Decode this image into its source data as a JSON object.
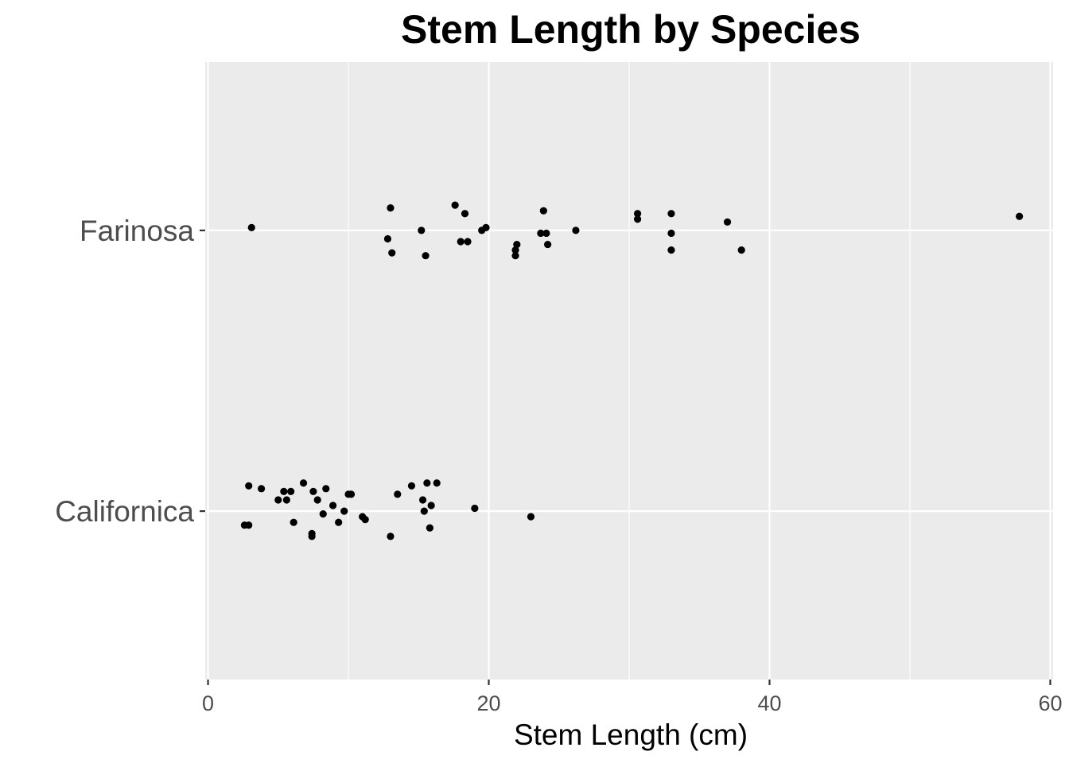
{
  "chart_data": {
    "type": "scatter",
    "title": "Stem Length by Species",
    "xlabel": "Stem Length (cm)",
    "ylabel": "",
    "xlim": [
      -0.2,
      60.2
    ],
    "xticks": [
      0,
      20,
      40,
      60
    ],
    "categories": [
      "Californica",
      "Farinosa"
    ],
    "grid": true,
    "legend": "none",
    "colors": {
      "panel": "#ebebeb",
      "grid": "#ffffff",
      "point": "#000000",
      "tick_text": "#4d4d4d",
      "axis_ticks": "#333333"
    },
    "series": [
      {
        "category": "Farinosa",
        "points": [
          {
            "x": 2.9,
            "y": 1.09
          },
          {
            "x": 3.8,
            "y": 1.08
          },
          {
            "x": 5.4,
            "y": 1.07
          },
          {
            "x": 5.9,
            "y": 1.07
          },
          {
            "x": 6.8,
            "y": 1.1
          },
          {
            "x": 7.5,
            "y": 1.07
          },
          {
            "x": 8.4,
            "y": 1.08
          },
          {
            "x": 10.0,
            "y": 1.06
          },
          {
            "x": 10.2,
            "y": 1.06
          },
          {
            "x": 13.5,
            "y": 1.06
          },
          {
            "x": 14.5,
            "y": 1.09
          },
          {
            "x": 15.6,
            "y": 1.1
          },
          {
            "x": 16.3,
            "y": 1.1
          },
          {
            "x": 5.0,
            "y": 1.04
          },
          {
            "x": 5.6,
            "y": 1.04
          },
          {
            "x": 7.8,
            "y": 1.04
          },
          {
            "x": 8.9,
            "y": 1.02
          },
          {
            "x": 15.3,
            "y": 1.04
          },
          {
            "x": 15.9,
            "y": 1.02
          },
          {
            "x": 19.0,
            "y": 1.01
          },
          {
            "x": 8.2,
            "y": 0.99
          },
          {
            "x": 9.7,
            "y": 1.0
          },
          {
            "x": 11.0,
            "y": 0.98
          },
          {
            "x": 11.2,
            "y": 0.97
          },
          {
            "x": 15.4,
            "y": 1.0
          },
          {
            "x": 23.0,
            "y": 0.98
          },
          {
            "x": 2.6,
            "y": 0.95
          },
          {
            "x": 2.9,
            "y": 0.95
          },
          {
            "x": 6.1,
            "y": 0.96
          },
          {
            "x": 9.3,
            "y": 0.96
          },
          {
            "x": 15.8,
            "y": 0.94
          },
          {
            "x": 7.4,
            "y": 0.92
          },
          {
            "x": 7.4,
            "y": 0.91
          },
          {
            "x": 13.0,
            "y": 0.91
          }
        ]
      },
      {
        "category": "Californica",
        "points": [
          {
            "x": 3.1,
            "y": 2.01
          },
          {
            "x": 13.0,
            "y": 2.08
          },
          {
            "x": 12.8,
            "y": 1.97
          },
          {
            "x": 13.1,
            "y": 1.92
          },
          {
            "x": 15.2,
            "y": 2.0
          },
          {
            "x": 15.5,
            "y": 1.91
          },
          {
            "x": 17.6,
            "y": 2.09
          },
          {
            "x": 18.3,
            "y": 2.06
          },
          {
            "x": 18.0,
            "y": 1.96
          },
          {
            "x": 18.5,
            "y": 1.96
          },
          {
            "x": 19.5,
            "y": 2.0
          },
          {
            "x": 19.8,
            "y": 2.01
          },
          {
            "x": 22.0,
            "y": 1.95
          },
          {
            "x": 21.9,
            "y": 1.93
          },
          {
            "x": 21.9,
            "y": 1.91
          },
          {
            "x": 23.9,
            "y": 2.07
          },
          {
            "x": 23.7,
            "y": 1.99
          },
          {
            "x": 24.1,
            "y": 1.99
          },
          {
            "x": 24.2,
            "y": 1.95
          },
          {
            "x": 26.2,
            "y": 2.0
          },
          {
            "x": 30.6,
            "y": 2.06
          },
          {
            "x": 30.6,
            "y": 2.04
          },
          {
            "x": 33.0,
            "y": 2.06
          },
          {
            "x": 33.0,
            "y": 1.99
          },
          {
            "x": 33.0,
            "y": 1.93
          },
          {
            "x": 37.0,
            "y": 2.03
          },
          {
            "x": 38.0,
            "y": 1.93
          },
          {
            "x": 57.8,
            "y": 2.05
          }
        ]
      }
    ]
  }
}
